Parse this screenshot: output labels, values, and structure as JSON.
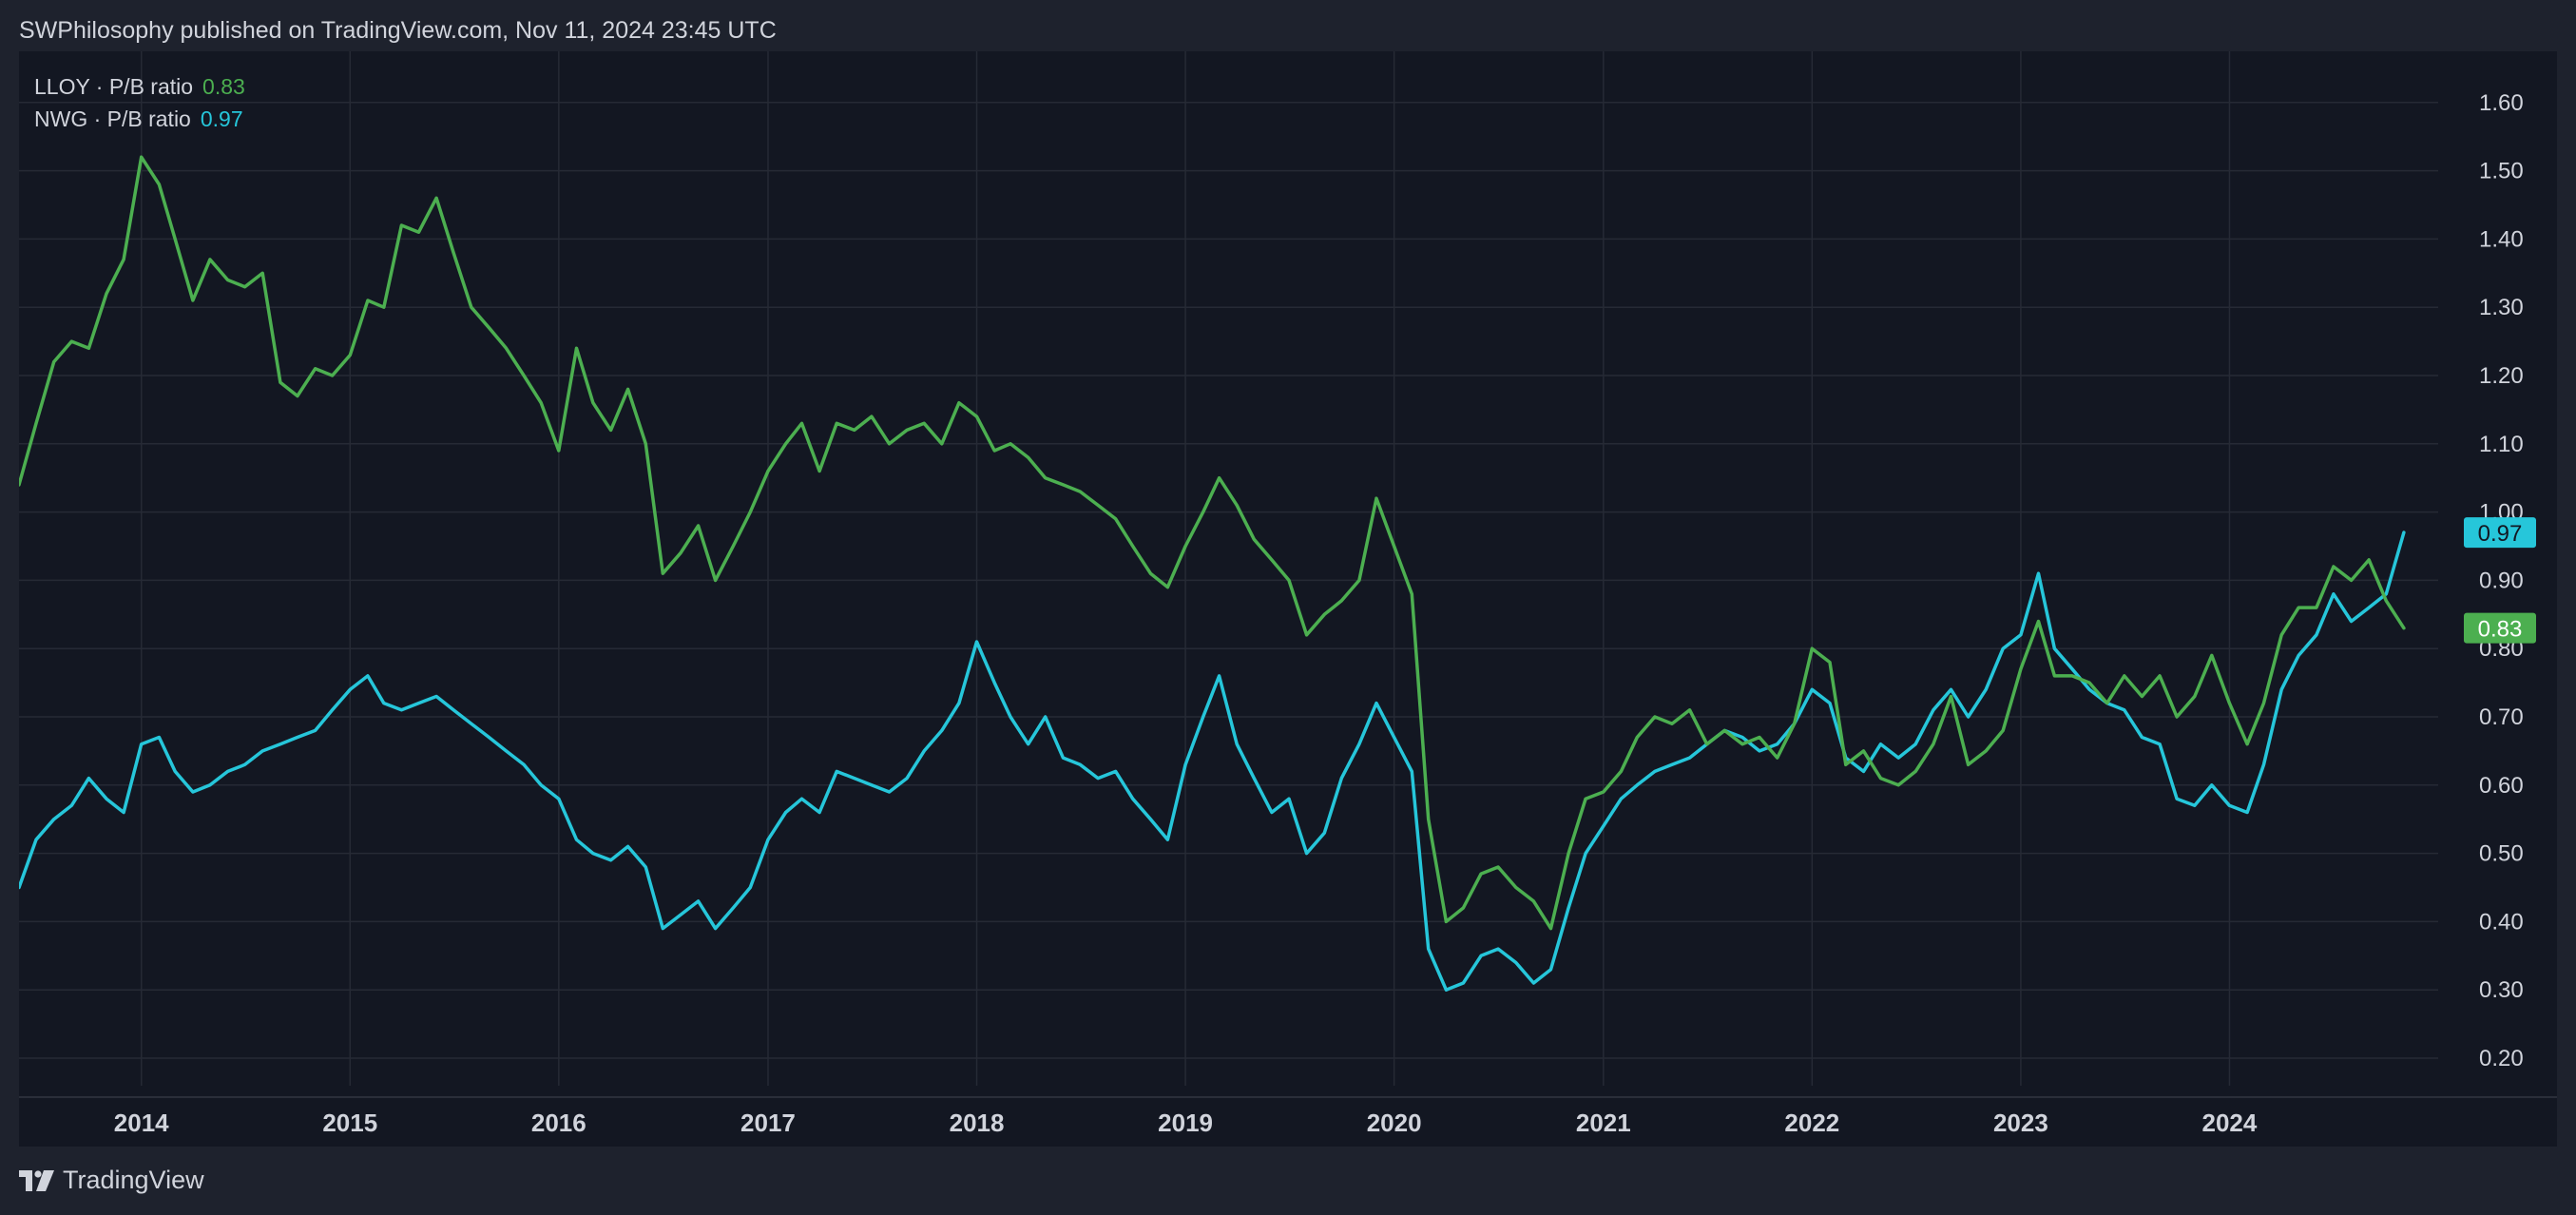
{
  "header": {
    "publisher": "SWPhilosophy published on TradingView.com, Nov 11, 2024 23:45 UTC"
  },
  "footer": {
    "brand": "TradingView",
    "logo_icon": "tradingview-logo-icon"
  },
  "colors": {
    "background": "#131722",
    "grid": "#262a35",
    "text": "#d1d4dc",
    "lloy": "#4caf50",
    "nwg": "#26c6da"
  },
  "chart_data": {
    "type": "line",
    "y_ticks": [
      "1.60",
      "1.50",
      "1.40",
      "1.30",
      "1.20",
      "1.10",
      "1.00",
      "0.90",
      "0.80",
      "0.70",
      "0.60",
      "0.50",
      "0.40",
      "0.30",
      "0.20"
    ],
    "x_ticks": [
      "2014",
      "2015",
      "2016",
      "2017",
      "2018",
      "2019",
      "2020",
      "2021",
      "2022",
      "2023",
      "2024"
    ],
    "ylim": [
      0.15,
      1.7
    ],
    "xlim": [
      "2013-06-01",
      "2024-12-31"
    ],
    "grid": true,
    "series": [
      {
        "name": "LLOY · P/B ratio",
        "last": "0.83",
        "color": "#4caf50",
        "points": [
          [
            "2013-06-01",
            1.04
          ],
          [
            "2013-07-01",
            1.13
          ],
          [
            "2013-08-01",
            1.22
          ],
          [
            "2013-09-01",
            1.25
          ],
          [
            "2013-10-01",
            1.24
          ],
          [
            "2013-11-01",
            1.32
          ],
          [
            "2013-12-01",
            1.37
          ],
          [
            "2014-01-01",
            1.52
          ],
          [
            "2014-02-01",
            1.48
          ],
          [
            "2014-03-01",
            1.4
          ],
          [
            "2014-04-01",
            1.31
          ],
          [
            "2014-05-01",
            1.37
          ],
          [
            "2014-06-01",
            1.34
          ],
          [
            "2014-07-01",
            1.33
          ],
          [
            "2014-08-01",
            1.35
          ],
          [
            "2014-09-01",
            1.19
          ],
          [
            "2014-10-01",
            1.17
          ],
          [
            "2014-11-01",
            1.21
          ],
          [
            "2014-12-01",
            1.2
          ],
          [
            "2015-01-01",
            1.23
          ],
          [
            "2015-02-01",
            1.31
          ],
          [
            "2015-03-01",
            1.3
          ],
          [
            "2015-04-01",
            1.42
          ],
          [
            "2015-05-01",
            1.41
          ],
          [
            "2015-06-01",
            1.46
          ],
          [
            "2015-07-01",
            1.38
          ],
          [
            "2015-08-01",
            1.3
          ],
          [
            "2015-09-01",
            1.27
          ],
          [
            "2015-10-01",
            1.24
          ],
          [
            "2015-11-01",
            1.2
          ],
          [
            "2015-12-01",
            1.16
          ],
          [
            "2016-01-01",
            1.09
          ],
          [
            "2016-02-01",
            1.24
          ],
          [
            "2016-03-01",
            1.16
          ],
          [
            "2016-04-01",
            1.12
          ],
          [
            "2016-05-01",
            1.18
          ],
          [
            "2016-06-01",
            1.1
          ],
          [
            "2016-07-01",
            0.91
          ],
          [
            "2016-08-01",
            0.94
          ],
          [
            "2016-09-01",
            0.98
          ],
          [
            "2016-10-01",
            0.9
          ],
          [
            "2016-11-01",
            0.95
          ],
          [
            "2016-12-01",
            1.0
          ],
          [
            "2017-01-01",
            1.06
          ],
          [
            "2017-02-01",
            1.1
          ],
          [
            "2017-03-01",
            1.13
          ],
          [
            "2017-04-01",
            1.06
          ],
          [
            "2017-05-01",
            1.13
          ],
          [
            "2017-06-01",
            1.12
          ],
          [
            "2017-07-01",
            1.14
          ],
          [
            "2017-08-01",
            1.1
          ],
          [
            "2017-09-01",
            1.12
          ],
          [
            "2017-10-01",
            1.13
          ],
          [
            "2017-11-01",
            1.1
          ],
          [
            "2017-12-01",
            1.16
          ],
          [
            "2018-01-01",
            1.14
          ],
          [
            "2018-02-01",
            1.09
          ],
          [
            "2018-03-01",
            1.1
          ],
          [
            "2018-04-01",
            1.08
          ],
          [
            "2018-05-01",
            1.05
          ],
          [
            "2018-06-01",
            1.04
          ],
          [
            "2018-07-01",
            1.03
          ],
          [
            "2018-08-01",
            1.01
          ],
          [
            "2018-09-01",
            0.99
          ],
          [
            "2018-10-01",
            0.95
          ],
          [
            "2018-11-01",
            0.91
          ],
          [
            "2018-12-01",
            0.89
          ],
          [
            "2019-01-01",
            0.95
          ],
          [
            "2019-02-01",
            1.0
          ],
          [
            "2019-03-01",
            1.05
          ],
          [
            "2019-04-01",
            1.01
          ],
          [
            "2019-05-01",
            0.96
          ],
          [
            "2019-06-01",
            0.93
          ],
          [
            "2019-07-01",
            0.9
          ],
          [
            "2019-08-01",
            0.82
          ],
          [
            "2019-09-01",
            0.85
          ],
          [
            "2019-10-01",
            0.87
          ],
          [
            "2019-11-01",
            0.9
          ],
          [
            "2019-12-01",
            1.02
          ],
          [
            "2020-01-01",
            0.95
          ],
          [
            "2020-02-01",
            0.88
          ],
          [
            "2020-03-01",
            0.55
          ],
          [
            "2020-04-01",
            0.4
          ],
          [
            "2020-05-01",
            0.42
          ],
          [
            "2020-06-01",
            0.47
          ],
          [
            "2020-07-01",
            0.48
          ],
          [
            "2020-08-01",
            0.45
          ],
          [
            "2020-09-01",
            0.43
          ],
          [
            "2020-10-01",
            0.39
          ],
          [
            "2020-11-01",
            0.5
          ],
          [
            "2020-12-01",
            0.58
          ],
          [
            "2021-01-01",
            0.59
          ],
          [
            "2021-02-01",
            0.62
          ],
          [
            "2021-03-01",
            0.67
          ],
          [
            "2021-04-01",
            0.7
          ],
          [
            "2021-05-01",
            0.69
          ],
          [
            "2021-06-01",
            0.71
          ],
          [
            "2021-07-01",
            0.66
          ],
          [
            "2021-08-01",
            0.68
          ],
          [
            "2021-09-01",
            0.66
          ],
          [
            "2021-10-01",
            0.67
          ],
          [
            "2021-11-01",
            0.64
          ],
          [
            "2021-12-01",
            0.69
          ],
          [
            "2022-01-01",
            0.8
          ],
          [
            "2022-02-01",
            0.78
          ],
          [
            "2022-03-01",
            0.63
          ],
          [
            "2022-04-01",
            0.65
          ],
          [
            "2022-05-01",
            0.61
          ],
          [
            "2022-06-01",
            0.6
          ],
          [
            "2022-07-01",
            0.62
          ],
          [
            "2022-08-01",
            0.66
          ],
          [
            "2022-09-01",
            0.73
          ],
          [
            "2022-10-01",
            0.63
          ],
          [
            "2022-11-01",
            0.65
          ],
          [
            "2022-12-01",
            0.68
          ],
          [
            "2023-01-01",
            0.77
          ],
          [
            "2023-02-01",
            0.84
          ],
          [
            "2023-03-01",
            0.76
          ],
          [
            "2023-04-01",
            0.76
          ],
          [
            "2023-05-01",
            0.75
          ],
          [
            "2023-06-01",
            0.72
          ],
          [
            "2023-07-01",
            0.76
          ],
          [
            "2023-08-01",
            0.73
          ],
          [
            "2023-09-01",
            0.76
          ],
          [
            "2023-10-01",
            0.7
          ],
          [
            "2023-11-01",
            0.73
          ],
          [
            "2023-12-01",
            0.79
          ],
          [
            "2024-01-01",
            0.72
          ],
          [
            "2024-02-01",
            0.66
          ],
          [
            "2024-03-01",
            0.72
          ],
          [
            "2024-04-01",
            0.82
          ],
          [
            "2024-05-01",
            0.86
          ],
          [
            "2024-06-01",
            0.86
          ],
          [
            "2024-07-01",
            0.92
          ],
          [
            "2024-08-01",
            0.9
          ],
          [
            "2024-09-01",
            0.93
          ],
          [
            "2024-10-01",
            0.87
          ],
          [
            "2024-11-01",
            0.83
          ]
        ]
      },
      {
        "name": "NWG · P/B ratio",
        "last": "0.97",
        "color": "#26c6da",
        "points": [
          [
            "2013-06-01",
            0.45
          ],
          [
            "2013-07-01",
            0.52
          ],
          [
            "2013-08-01",
            0.55
          ],
          [
            "2013-09-01",
            0.57
          ],
          [
            "2013-10-01",
            0.61
          ],
          [
            "2013-11-01",
            0.58
          ],
          [
            "2013-12-01",
            0.56
          ],
          [
            "2014-01-01",
            0.66
          ],
          [
            "2014-02-01",
            0.67
          ],
          [
            "2014-03-01",
            0.62
          ],
          [
            "2014-04-01",
            0.59
          ],
          [
            "2014-05-01",
            0.6
          ],
          [
            "2014-06-01",
            0.62
          ],
          [
            "2014-07-01",
            0.63
          ],
          [
            "2014-08-01",
            0.65
          ],
          [
            "2014-09-01",
            0.66
          ],
          [
            "2014-10-01",
            0.67
          ],
          [
            "2014-11-01",
            0.68
          ],
          [
            "2014-12-01",
            0.71
          ],
          [
            "2015-01-01",
            0.74
          ],
          [
            "2015-02-01",
            0.76
          ],
          [
            "2015-03-01",
            0.72
          ],
          [
            "2015-04-01",
            0.71
          ],
          [
            "2015-05-01",
            0.72
          ],
          [
            "2015-06-01",
            0.73
          ],
          [
            "2015-07-01",
            0.71
          ],
          [
            "2015-08-01",
            0.69
          ],
          [
            "2015-09-01",
            0.67
          ],
          [
            "2015-10-01",
            0.65
          ],
          [
            "2015-11-01",
            0.63
          ],
          [
            "2015-12-01",
            0.6
          ],
          [
            "2016-01-01",
            0.58
          ],
          [
            "2016-02-01",
            0.52
          ],
          [
            "2016-03-01",
            0.5
          ],
          [
            "2016-04-01",
            0.49
          ],
          [
            "2016-05-01",
            0.51
          ],
          [
            "2016-06-01",
            0.48
          ],
          [
            "2016-07-01",
            0.39
          ],
          [
            "2016-08-01",
            0.41
          ],
          [
            "2016-09-01",
            0.43
          ],
          [
            "2016-10-01",
            0.39
          ],
          [
            "2016-11-01",
            0.42
          ],
          [
            "2016-12-01",
            0.45
          ],
          [
            "2017-01-01",
            0.52
          ],
          [
            "2017-02-01",
            0.56
          ],
          [
            "2017-03-01",
            0.58
          ],
          [
            "2017-04-01",
            0.56
          ],
          [
            "2017-05-01",
            0.62
          ],
          [
            "2017-06-01",
            0.61
          ],
          [
            "2017-07-01",
            0.6
          ],
          [
            "2017-08-01",
            0.59
          ],
          [
            "2017-09-01",
            0.61
          ],
          [
            "2017-10-01",
            0.65
          ],
          [
            "2017-11-01",
            0.68
          ],
          [
            "2017-12-01",
            0.72
          ],
          [
            "2018-01-01",
            0.81
          ],
          [
            "2018-02-01",
            0.75
          ],
          [
            "2018-03-01",
            0.7
          ],
          [
            "2018-04-01",
            0.66
          ],
          [
            "2018-05-01",
            0.7
          ],
          [
            "2018-06-01",
            0.64
          ],
          [
            "2018-07-01",
            0.63
          ],
          [
            "2018-08-01",
            0.61
          ],
          [
            "2018-09-01",
            0.62
          ],
          [
            "2018-10-01",
            0.58
          ],
          [
            "2018-11-01",
            0.55
          ],
          [
            "2018-12-01",
            0.52
          ],
          [
            "2019-01-01",
            0.63
          ],
          [
            "2019-02-01",
            0.7
          ],
          [
            "2019-03-01",
            0.76
          ],
          [
            "2019-04-01",
            0.66
          ],
          [
            "2019-05-01",
            0.61
          ],
          [
            "2019-06-01",
            0.56
          ],
          [
            "2019-07-01",
            0.58
          ],
          [
            "2019-08-01",
            0.5
          ],
          [
            "2019-09-01",
            0.53
          ],
          [
            "2019-10-01",
            0.61
          ],
          [
            "2019-11-01",
            0.66
          ],
          [
            "2019-12-01",
            0.72
          ],
          [
            "2020-01-01",
            0.67
          ],
          [
            "2020-02-01",
            0.62
          ],
          [
            "2020-03-01",
            0.36
          ],
          [
            "2020-04-01",
            0.3
          ],
          [
            "2020-05-01",
            0.31
          ],
          [
            "2020-06-01",
            0.35
          ],
          [
            "2020-07-01",
            0.36
          ],
          [
            "2020-08-01",
            0.34
          ],
          [
            "2020-09-01",
            0.31
          ],
          [
            "2020-10-01",
            0.33
          ],
          [
            "2020-11-01",
            0.42
          ],
          [
            "2020-12-01",
            0.5
          ],
          [
            "2021-01-01",
            0.54
          ],
          [
            "2021-02-01",
            0.58
          ],
          [
            "2021-03-01",
            0.6
          ],
          [
            "2021-04-01",
            0.62
          ],
          [
            "2021-05-01",
            0.63
          ],
          [
            "2021-06-01",
            0.64
          ],
          [
            "2021-07-01",
            0.66
          ],
          [
            "2021-08-01",
            0.68
          ],
          [
            "2021-09-01",
            0.67
          ],
          [
            "2021-10-01",
            0.65
          ],
          [
            "2021-11-01",
            0.66
          ],
          [
            "2021-12-01",
            0.69
          ],
          [
            "2022-01-01",
            0.74
          ],
          [
            "2022-02-01",
            0.72
          ],
          [
            "2022-03-01",
            0.64
          ],
          [
            "2022-04-01",
            0.62
          ],
          [
            "2022-05-01",
            0.66
          ],
          [
            "2022-06-01",
            0.64
          ],
          [
            "2022-07-01",
            0.66
          ],
          [
            "2022-08-01",
            0.71
          ],
          [
            "2022-09-01",
            0.74
          ],
          [
            "2022-10-01",
            0.7
          ],
          [
            "2022-11-01",
            0.74
          ],
          [
            "2022-12-01",
            0.8
          ],
          [
            "2023-01-01",
            0.82
          ],
          [
            "2023-02-01",
            0.91
          ],
          [
            "2023-03-01",
            0.8
          ],
          [
            "2023-04-01",
            0.77
          ],
          [
            "2023-05-01",
            0.74
          ],
          [
            "2023-06-01",
            0.72
          ],
          [
            "2023-07-01",
            0.71
          ],
          [
            "2023-08-01",
            0.67
          ],
          [
            "2023-09-01",
            0.66
          ],
          [
            "2023-10-01",
            0.58
          ],
          [
            "2023-11-01",
            0.57
          ],
          [
            "2023-12-01",
            0.6
          ],
          [
            "2024-01-01",
            0.57
          ],
          [
            "2024-02-01",
            0.56
          ],
          [
            "2024-03-01",
            0.63
          ],
          [
            "2024-04-01",
            0.74
          ],
          [
            "2024-05-01",
            0.79
          ],
          [
            "2024-06-01",
            0.82
          ],
          [
            "2024-07-01",
            0.88
          ],
          [
            "2024-08-01",
            0.84
          ],
          [
            "2024-09-01",
            0.86
          ],
          [
            "2024-10-01",
            0.88
          ],
          [
            "2024-11-01",
            0.97
          ]
        ]
      }
    ]
  }
}
